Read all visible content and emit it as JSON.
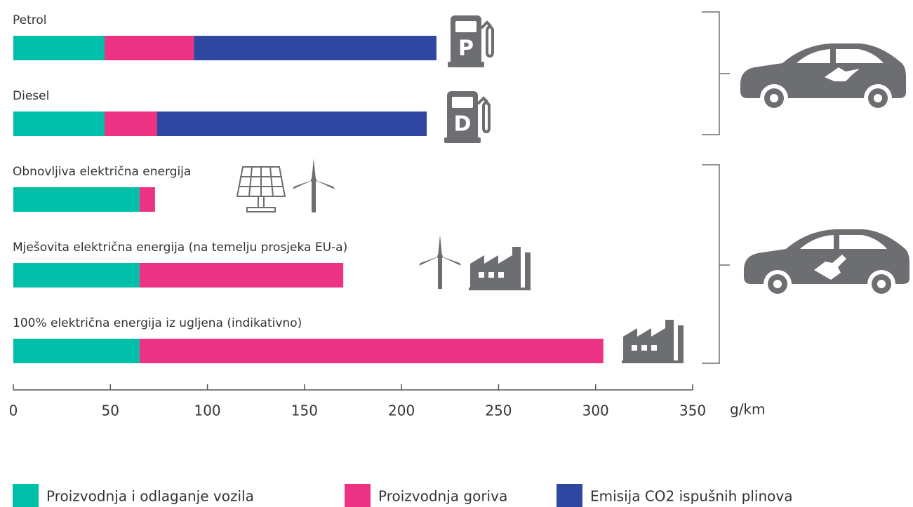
{
  "chart_data": {
    "type": "stacked-bar-horizontal",
    "categories": [
      "Petrol",
      "Diesel",
      "Obnovljiva električna energija",
      "Mješovita električna energija (na temelju prosjeka EU-a)",
      "100% električna energija iz ugljena (indikativno)"
    ],
    "series": [
      {
        "name": "Proizvodnja i odlaganje vozila",
        "color": "#00bfa9",
        "values": [
          47,
          47,
          65,
          65,
          65
        ]
      },
      {
        "name": "Proizvodnja goriva",
        "color": "#ec3282",
        "values": [
          46,
          27,
          8,
          105,
          239
        ]
      },
      {
        "name": "Emisija CO2 ispušnih plinova",
        "color": "#2f47a0",
        "values": [
          125,
          139,
          0,
          0,
          0
        ]
      }
    ],
    "xlabel": "g/km",
    "xlim": [
      0,
      350
    ],
    "xticks": [
      0,
      50,
      100,
      150,
      200,
      250,
      300,
      350
    ]
  }
}
